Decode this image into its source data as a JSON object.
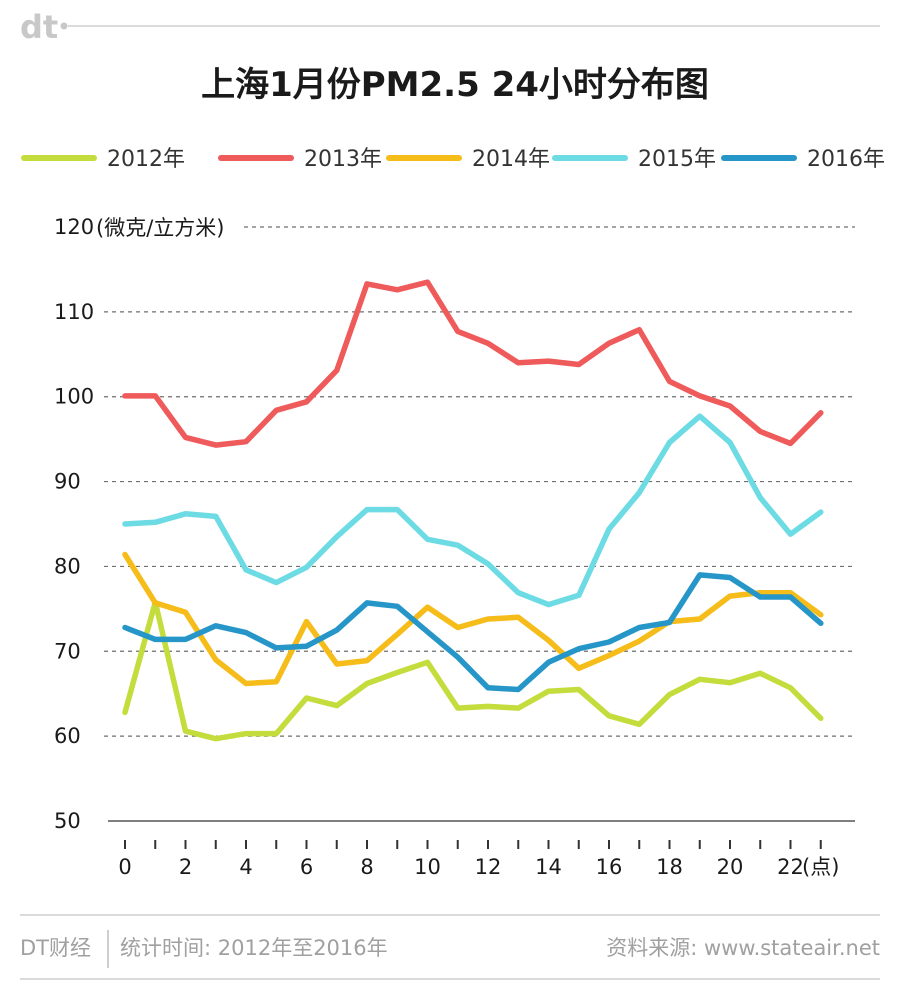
{
  "brand": {
    "logo": "dt"
  },
  "chart_data": {
    "type": "line",
    "title": "上海1月份PM2.5 24小时分布图",
    "ylabel": "(微克/立方米)",
    "xlabel": "(点)",
    "ylim": [
      50,
      120
    ],
    "xlim": [
      0,
      23
    ],
    "y_ticks": [
      "50",
      "60",
      "70",
      "80",
      "90",
      "100",
      "110",
      "120"
    ],
    "x_ticks": [
      "0",
      "2",
      "4",
      "6",
      "8",
      "10",
      "12",
      "14",
      "16",
      "18",
      "20",
      "22"
    ],
    "grid": "horizontal-dashed",
    "legend_position": "top",
    "x": [
      0,
      1,
      2,
      3,
      4,
      5,
      6,
      7,
      8,
      9,
      10,
      11,
      12,
      13,
      14,
      15,
      16,
      17,
      18,
      19,
      20,
      21,
      22,
      23
    ],
    "series": [
      {
        "name": "2012年",
        "color": "#c4dc3c",
        "values": [
          62.8,
          75.8,
          60.6,
          59.7,
          60.3,
          60.3,
          64.5,
          63.6,
          66.2,
          67.5,
          68.7,
          63.3,
          63.5,
          63.3,
          65.3,
          65.5,
          62.4,
          61.4,
          64.9,
          66.7,
          66.3,
          67.4,
          65.7,
          62.1
        ]
      },
      {
        "name": "2013年",
        "color": "#ef5a5a",
        "values": [
          100.1,
          100.1,
          95.2,
          94.3,
          94.7,
          98.4,
          99.4,
          103.1,
          113.3,
          112.6,
          113.5,
          107.7,
          106.3,
          104.0,
          104.2,
          103.8,
          106.3,
          107.9,
          101.8,
          100.1,
          98.9,
          95.9,
          94.5,
          98.1
        ]
      },
      {
        "name": "2014年",
        "color": "#f5bc1a",
        "values": [
          81.4,
          75.7,
          74.6,
          69.0,
          66.2,
          66.4,
          73.5,
          68.5,
          68.9,
          72.0,
          75.2,
          72.8,
          73.8,
          74.0,
          71.3,
          68.0,
          69.5,
          71.2,
          73.5,
          73.8,
          76.5,
          76.9,
          76.9,
          74.3
        ]
      },
      {
        "name": "2015年",
        "color": "#6ddbe4",
        "values": [
          85.0,
          85.2,
          86.2,
          85.9,
          79.6,
          78.1,
          79.9,
          83.5,
          86.7,
          86.7,
          83.2,
          82.5,
          80.3,
          76.9,
          75.5,
          76.6,
          84.4,
          88.7,
          94.6,
          97.7,
          94.6,
          88.1,
          83.8,
          86.4
        ]
      },
      {
        "name": "2016年",
        "color": "#2696c8",
        "values": [
          72.8,
          71.4,
          71.4,
          73.0,
          72.2,
          70.4,
          70.6,
          72.5,
          75.7,
          75.3,
          72.3,
          69.3,
          65.7,
          65.5,
          68.7,
          70.3,
          71.1,
          72.8,
          73.4,
          79.0,
          78.7,
          76.4,
          76.4,
          73.3
        ]
      }
    ]
  },
  "footer": {
    "brand": "DT财经",
    "period": "统计时间: 2012年至2016年",
    "source": "资料来源: www.stateair.net"
  }
}
